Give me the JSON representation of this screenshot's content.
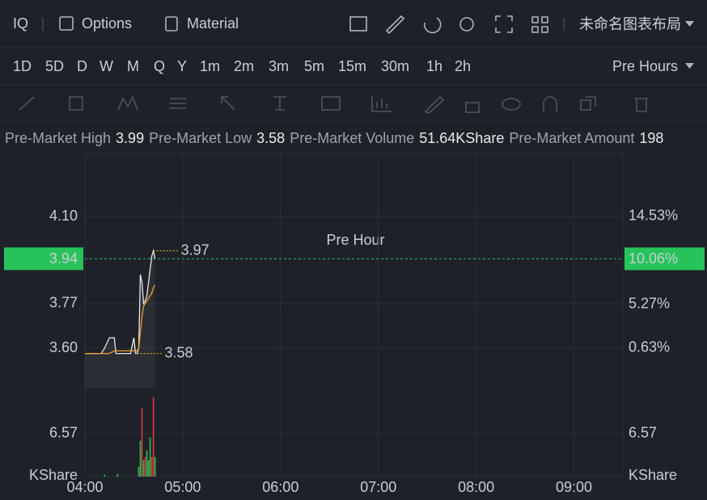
{
  "toolbar": {
    "symbol": "IQ",
    "options": "Options",
    "material": "Material",
    "layout": "未命名图表布局"
  },
  "timeframes": [
    "1D",
    "5D",
    "D",
    "W",
    "M",
    "Q",
    "Y",
    "1m",
    "2m",
    "3m",
    "5m",
    "15m",
    "30m",
    "1h",
    "2h"
  ],
  "session": "Pre Hours",
  "stats": [
    {
      "label": "Pre-Market High",
      "value": "3.99"
    },
    {
      "label": "Pre-Market Low",
      "value": "3.58"
    },
    {
      "label": "Pre-Market Volume",
      "value": "51.64KShare"
    },
    {
      "label": "Pre-Market Amount",
      "value": "198"
    }
  ],
  "chart_data": {
    "type": "line",
    "watermark": "Pre Hour",
    "x": [
      "04:00",
      "04:10",
      "04:12",
      "04:15",
      "04:18",
      "04:19",
      "04:28",
      "04:30",
      "04:31",
      "04:32",
      "04:33",
      "04:34",
      "04:35",
      "04:36",
      "04:37",
      "04:38",
      "04:40",
      "04:41",
      "04:42",
      "04:43"
    ],
    "series": [
      {
        "color": "#e6e6e6",
        "values": [
          3.58,
          3.58,
          3.6,
          3.64,
          3.64,
          3.58,
          3.58,
          3.64,
          3.58,
          3.58,
          3.6,
          3.88,
          3.85,
          3.77,
          3.78,
          3.8,
          3.9,
          3.95,
          3.97,
          3.94
        ]
      },
      {
        "color": "#f0a030",
        "values": [
          3.58,
          3.58,
          3.58,
          3.58,
          3.59,
          3.59,
          3.59,
          3.59,
          3.59,
          3.59,
          3.6,
          3.66,
          3.72,
          3.76,
          3.77,
          3.78,
          3.8,
          3.81,
          3.83,
          3.84
        ]
      }
    ],
    "xlim": [
      "04:00",
      "09:30"
    ],
    "xticks": [
      "04:00",
      "05:00",
      "06:00",
      "07:00",
      "08:00",
      "09:00"
    ],
    "ylim": [
      3.45,
      4.34
    ],
    "yticks": [
      {
        "value": 4.1,
        "label": "4.10"
      },
      3.77,
      {
        "value": 3.6,
        "label": "3.60"
      }
    ],
    "y2lim": [
      -3.55,
      21.18
    ],
    "y2ticks": [
      {
        "value": 14.53,
        "label": "14.53%"
      },
      {
        "value": 5.27,
        "label": "5.27%"
      },
      {
        "value": 0.63,
        "label": "0.63%"
      }
    ],
    "last_price": 3.94,
    "last_change": {
      "value": 10.06,
      "label": "10.06%"
    },
    "max_label": 3.97,
    "min_label": 3.58,
    "volume": {
      "x": [
        "04:12",
        "04:20",
        "04:33",
        "04:34",
        "04:35",
        "04:36",
        "04:37",
        "04:38",
        "04:39",
        "04:40",
        "04:41",
        "04:42",
        "04:43"
      ],
      "values": [
        0.3,
        0.4,
        1.5,
        5.5,
        10.5,
        2.5,
        3,
        4,
        2.5,
        6,
        3,
        12.2,
        3
      ],
      "colors": [
        "#2fbf55",
        "#2fbf55",
        "#2fbf55",
        "#2fbf55",
        "#e0383e",
        "#2fbf55",
        "#e0383e",
        "#2fbf55",
        "#2fbf55",
        "#2fbf55",
        "#e0383e",
        "#e0383e",
        "#2fbf55"
      ],
      "ylim": [
        0,
        12.39
      ],
      "yticks": [
        6.57
      ],
      "unit": "KShare"
    }
  }
}
